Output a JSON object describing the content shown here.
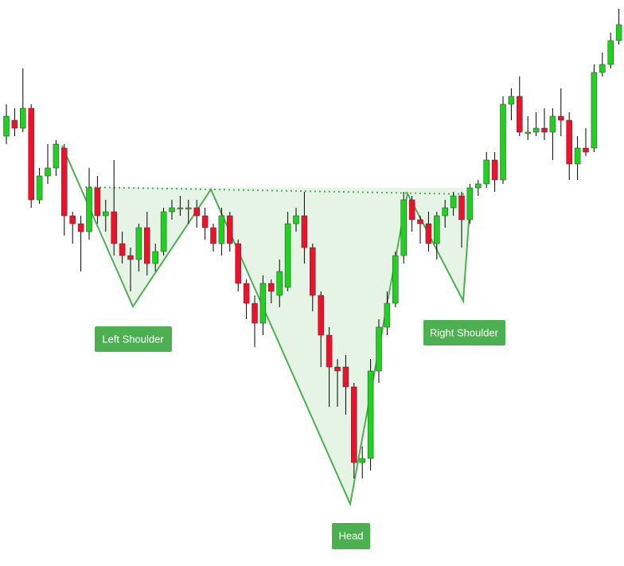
{
  "chart_data": {
    "type": "candlestick",
    "annotations": [
      "Left Shoulder",
      "Head",
      "Right Shoulder"
    ],
    "ylim": [
      0,
      711
    ],
    "up_color": "#1ed31e",
    "down_color": "#f0102a",
    "open": [
      540,
      560,
      550,
      575,
      460,
      490,
      500,
      525,
      440,
      430,
      420,
      475,
      440,
      445,
      405,
      390,
      385,
      425,
      380,
      395,
      445,
      450,
      450,
      450,
      440,
      425,
      405,
      440,
      405,
      355,
      330,
      305,
      355,
      340,
      350,
      430,
      440,
      400,
      340,
      290,
      250,
      250,
      225,
      130,
      135,
      245,
      300,
      330,
      390,
      460,
      435,
      430,
      405,
      440,
      450,
      465,
      435,
      475,
      480,
      510,
      485,
      580,
      590,
      545,
      545,
      550,
      545,
      565,
      560,
      505,
      525,
      525,
      620,
      630,
      660
    ],
    "close": [
      565,
      550,
      575,
      460,
      490,
      500,
      530,
      440,
      430,
      420,
      475,
      440,
      445,
      405,
      390,
      385,
      425,
      380,
      395,
      445,
      450,
      450,
      450,
      440,
      425,
      405,
      440,
      405,
      355,
      330,
      305,
      355,
      345,
      370,
      430,
      440,
      400,
      340,
      290,
      250,
      245,
      225,
      130,
      135,
      245,
      300,
      330,
      390,
      460,
      435,
      430,
      405,
      440,
      450,
      465,
      435,
      475,
      480,
      510,
      485,
      580,
      590,
      545,
      545,
      550,
      545,
      565,
      560,
      505,
      525,
      520,
      620,
      630,
      660,
      680
    ],
    "high": [
      580,
      575,
      625,
      580,
      500,
      530,
      535,
      530,
      445,
      440,
      500,
      490,
      460,
      510,
      420,
      400,
      430,
      445,
      405,
      450,
      460,
      465,
      460,
      460,
      450,
      430,
      450,
      445,
      410,
      360,
      340,
      365,
      360,
      385,
      445,
      450,
      470,
      405,
      345,
      300,
      260,
      265,
      230,
      150,
      260,
      310,
      345,
      395,
      470,
      465,
      440,
      445,
      445,
      460,
      470,
      470,
      480,
      485,
      520,
      520,
      590,
      600,
      615,
      565,
      570,
      575,
      575,
      600,
      570,
      540,
      550,
      630,
      645,
      670,
      700
    ],
    "low": [
      530,
      540,
      545,
      450,
      455,
      480,
      490,
      415,
      405,
      370,
      410,
      430,
      420,
      390,
      380,
      345,
      370,
      365,
      370,
      390,
      435,
      440,
      430,
      425,
      410,
      395,
      390,
      395,
      345,
      310,
      275,
      290,
      330,
      325,
      345,
      420,
      380,
      320,
      250,
      200,
      200,
      190,
      110,
      110,
      120,
      230,
      290,
      325,
      380,
      420,
      405,
      395,
      385,
      425,
      440,
      400,
      430,
      465,
      475,
      470,
      480,
      560,
      540,
      535,
      540,
      535,
      510,
      540,
      485,
      485,
      515,
      520,
      615,
      625,
      655
    ]
  }
}
